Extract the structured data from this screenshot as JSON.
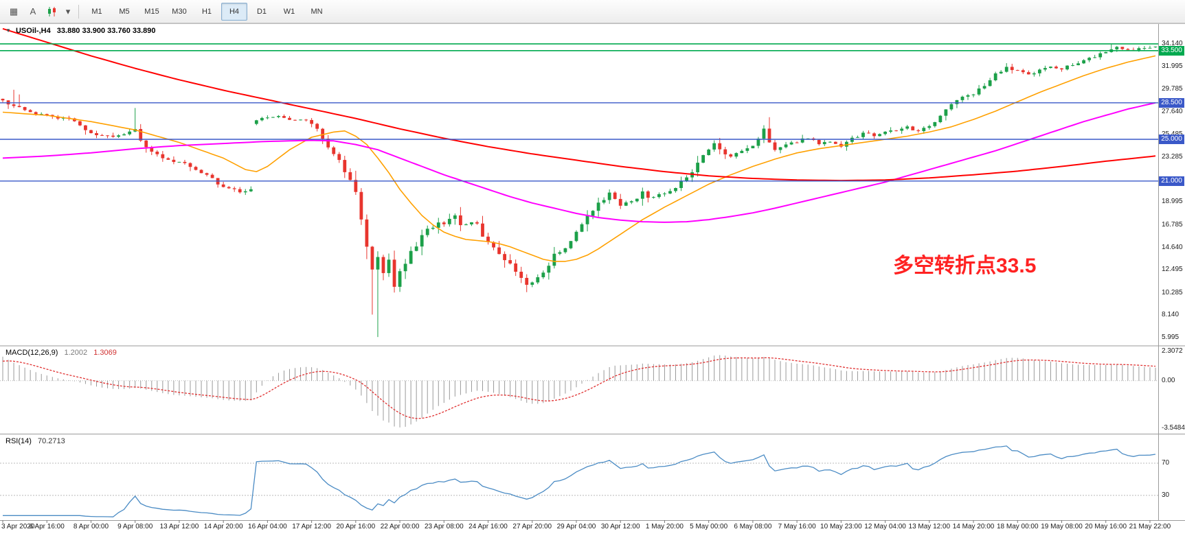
{
  "toolbar": {
    "timeframes": [
      "M1",
      "M5",
      "M15",
      "M30",
      "H1",
      "H4",
      "D1",
      "W1",
      "MN"
    ],
    "active_timeframe": "H4",
    "annotation_button_label": "A"
  },
  "icons": {
    "grid": "▦",
    "caret_down": "▾",
    "caret_small": "▼"
  },
  "main_chart": {
    "title_symbol": "USOil-,H4",
    "title_ohlc": "33.880 33.900 33.760 33.890",
    "annotation": "多空转折点33.5",
    "y_axis_labels": [
      "34.140",
      "31.995",
      "29.785",
      "27.640",
      "25.485",
      "23.285",
      "21.140",
      "18.995",
      "16.785",
      "14.640",
      "12.495",
      "10.285",
      "8.140",
      "5.995"
    ]
  },
  "hlines": [
    {
      "price": 34.15,
      "color": "#00A94F",
      "width": 1.6,
      "badge": null
    },
    {
      "price": 33.5,
      "color": "#00A94F",
      "width": 1.6,
      "badge": "33.500"
    },
    {
      "price": 28.5,
      "color": "#3A58C8",
      "width": 1.4,
      "badge": "28.500"
    },
    {
      "price": 25.0,
      "color": "#3A58C8",
      "width": 1.4,
      "badge": "25.000"
    },
    {
      "price": 21.0,
      "color": "#3A58C8",
      "width": 1.4,
      "badge": "21.000"
    }
  ],
  "macd": {
    "title": "MACD(12,26,9)",
    "value_main": "1.2002",
    "value_signal": "1.3069",
    "axis_labels": [
      "2.3072",
      "0.00",
      "-3.5484"
    ],
    "axis_values": [
      2.3072,
      0,
      -3.5484
    ],
    "ylim": [
      -3.75,
      2.45
    ],
    "signal_init": 1.4
  },
  "rsi": {
    "title": "RSI(14)",
    "value": "70.2713",
    "levels": [
      70,
      30
    ],
    "ylim": [
      0,
      105
    ]
  },
  "time_axis": {
    "bar_step": 8,
    "labels": [
      "3 Apr 2020",
      "6 Apr 16:00",
      "8 Apr 00:00",
      "9 Apr 08:00",
      "13 Apr 12:00",
      "14 Apr 20:00",
      "16 Apr 04:00",
      "17 Apr 12:00",
      "20 Apr 16:00",
      "22 Apr 00:00",
      "23 Apr 08:00",
      "24 Apr 16:00",
      "27 Apr 20:00",
      "29 Apr 04:00",
      "30 Apr 12:00",
      "1 May 20:00",
      "5 May 00:00",
      "6 May 08:00",
      "7 May 16:00",
      "10 May 23:00",
      "12 May 04:00",
      "13 May 12:00",
      "14 May 20:00",
      "18 May 00:00",
      "19 May 08:00",
      "20 May 16:00",
      "21 May 22:00"
    ]
  },
  "colors": {
    "bull": "#1CA049",
    "bear": "#E8352E",
    "ma_red": "#FF0000",
    "ma_orange": "#FFA000",
    "ma_magenta": "#FF00FF",
    "hline_blue": "#3A58C8",
    "hline_green": "#00A94F",
    "macd_hist": "#999999",
    "macd_signal": "#E03030",
    "rsi_line": "#4A8BC4",
    "annotation": "#FF2222"
  },
  "chart_data": {
    "type": "candlestick",
    "symbol": "USOil",
    "timeframe": "H4",
    "last_candle": {
      "o": 33.88,
      "h": 33.9,
      "l": 33.76,
      "c": 33.89
    },
    "bars": 210,
    "seed": 12345,
    "noise_amp": 0.14,
    "noise_zones": [
      {
        "from": 58,
        "to": 100,
        "mult": 2.4
      },
      {
        "from": 101,
        "to": 132,
        "mult": 1.5
      }
    ],
    "close_anchors": [
      [
        0,
        28.6
      ],
      [
        2,
        28.2
      ],
      [
        4,
        27.8
      ],
      [
        6,
        27.5
      ],
      [
        8,
        27.2
      ],
      [
        10,
        27.0
      ],
      [
        12,
        26.9
      ],
      [
        14,
        26.3
      ],
      [
        16,
        25.6
      ],
      [
        18,
        25.3
      ],
      [
        20,
        25.2
      ],
      [
        22,
        25.4
      ],
      [
        24,
        26.0
      ],
      [
        25,
        25.0
      ],
      [
        26,
        24.3
      ],
      [
        28,
        23.5
      ],
      [
        30,
        23.1
      ],
      [
        32,
        22.8
      ],
      [
        34,
        22.4
      ],
      [
        36,
        21.9
      ],
      [
        38,
        21.2
      ],
      [
        40,
        20.4
      ],
      [
        42,
        20.1
      ],
      [
        44,
        20.0
      ],
      [
        45,
        20.1
      ],
      [
        46,
        26.8
      ],
      [
        48,
        27.1
      ],
      [
        50,
        27.3
      ],
      [
        52,
        26.8
      ],
      [
        54,
        27.0
      ],
      [
        56,
        26.5
      ],
      [
        58,
        25.3
      ],
      [
        60,
        23.8
      ],
      [
        62,
        21.9
      ],
      [
        64,
        20.0
      ],
      [
        65,
        17.6
      ],
      [
        66,
        14.8
      ],
      [
        67,
        12.2
      ],
      [
        68,
        13.4
      ],
      [
        69,
        12.0
      ],
      [
        70,
        13.6
      ],
      [
        71,
        11.2
      ],
      [
        72,
        12.3
      ],
      [
        74,
        14.3
      ],
      [
        76,
        15.6
      ],
      [
        78,
        16.7
      ],
      [
        80,
        17.0
      ],
      [
        82,
        17.4
      ],
      [
        84,
        16.6
      ],
      [
        86,
        16.9
      ],
      [
        88,
        15.1
      ],
      [
        90,
        13.9
      ],
      [
        92,
        12.8
      ],
      [
        94,
        11.4
      ],
      [
        95,
        10.8
      ],
      [
        96,
        11.3
      ],
      [
        98,
        12.4
      ],
      [
        100,
        13.7
      ],
      [
        102,
        14.7
      ],
      [
        104,
        16.2
      ],
      [
        106,
        17.7
      ],
      [
        108,
        18.8
      ],
      [
        110,
        19.7
      ],
      [
        112,
        18.6
      ],
      [
        114,
        19.2
      ],
      [
        116,
        19.8
      ],
      [
        118,
        19.4
      ],
      [
        120,
        19.7
      ],
      [
        122,
        20.5
      ],
      [
        124,
        21.4
      ],
      [
        126,
        22.7
      ],
      [
        128,
        24.2
      ],
      [
        129,
        24.7
      ],
      [
        130,
        24.0
      ],
      [
        132,
        23.3
      ],
      [
        134,
        23.8
      ],
      [
        136,
        24.3
      ],
      [
        138,
        25.9
      ],
      [
        139,
        24.6
      ],
      [
        140,
        24.0
      ],
      [
        142,
        24.4
      ],
      [
        144,
        24.8
      ],
      [
        146,
        25.1
      ],
      [
        148,
        24.6
      ],
      [
        150,
        24.9
      ],
      [
        152,
        24.4
      ],
      [
        154,
        25.1
      ],
      [
        156,
        25.6
      ],
      [
        158,
        25.3
      ],
      [
        160,
        25.7
      ],
      [
        162,
        25.9
      ],
      [
        164,
        26.1
      ],
      [
        166,
        25.8
      ],
      [
        168,
        26.3
      ],
      [
        170,
        27.2
      ],
      [
        172,
        28.3
      ],
      [
        174,
        29.0
      ],
      [
        176,
        29.4
      ],
      [
        178,
        30.2
      ],
      [
        180,
        31.3
      ],
      [
        182,
        31.9
      ],
      [
        184,
        31.5
      ],
      [
        186,
        31.1
      ],
      [
        188,
        31.6
      ],
      [
        190,
        32.0
      ],
      [
        192,
        31.8
      ],
      [
        194,
        32.2
      ],
      [
        196,
        32.6
      ],
      [
        198,
        33.0
      ],
      [
        200,
        33.4
      ],
      [
        202,
        33.8
      ],
      [
        204,
        33.5
      ],
      [
        206,
        33.8
      ],
      [
        208,
        33.89
      ],
      [
        209,
        33.89
      ]
    ],
    "spikes": [
      {
        "bar": 2,
        "high": 29.75
      },
      {
        "bar": 3,
        "high": 29.3
      },
      {
        "bar": 24,
        "high": 28.0
      },
      {
        "bar": 67,
        "low": 8.2
      },
      {
        "bar": 68,
        "low": 6.05
      },
      {
        "bar": 71,
        "low": 10.6
      },
      {
        "bar": 95,
        "low": 10.35
      },
      {
        "bar": 129,
        "high": 24.9
      },
      {
        "bar": 138,
        "high": 26.35
      },
      {
        "bar": 182,
        "high": 32.3
      },
      {
        "bar": 201,
        "high": 34.1
      }
    ],
    "ma_red": [
      [
        0,
        35.6
      ],
      [
        8,
        34.3
      ],
      [
        16,
        33.0
      ],
      [
        24,
        31.8
      ],
      [
        32,
        30.7
      ],
      [
        40,
        29.7
      ],
      [
        48,
        28.8
      ],
      [
        56,
        27.9
      ],
      [
        64,
        27.0
      ],
      [
        72,
        26.0
      ],
      [
        80,
        25.1
      ],
      [
        88,
        24.3
      ],
      [
        96,
        23.6
      ],
      [
        104,
        23.0
      ],
      [
        112,
        22.4
      ],
      [
        120,
        21.9
      ],
      [
        128,
        21.5
      ],
      [
        136,
        21.25
      ],
      [
        144,
        21.1
      ],
      [
        152,
        21.05
      ],
      [
        160,
        21.1
      ],
      [
        168,
        21.3
      ],
      [
        176,
        21.6
      ],
      [
        184,
        21.95
      ],
      [
        192,
        22.4
      ],
      [
        200,
        22.9
      ],
      [
        209,
        23.4
      ]
    ],
    "ma_magenta": [
      [
        0,
        23.2
      ],
      [
        8,
        23.4
      ],
      [
        16,
        23.7
      ],
      [
        24,
        24.1
      ],
      [
        32,
        24.4
      ],
      [
        40,
        24.6
      ],
      [
        48,
        24.8
      ],
      [
        56,
        24.9
      ],
      [
        60,
        24.85
      ],
      [
        64,
        24.5
      ],
      [
        68,
        24.0
      ],
      [
        72,
        23.2
      ],
      [
        76,
        22.4
      ],
      [
        80,
        21.6
      ],
      [
        84,
        20.9
      ],
      [
        88,
        20.2
      ],
      [
        92,
        19.5
      ],
      [
        96,
        18.9
      ],
      [
        100,
        18.4
      ],
      [
        104,
        17.9
      ],
      [
        108,
        17.5
      ],
      [
        112,
        17.25
      ],
      [
        116,
        17.1
      ],
      [
        120,
        17.05
      ],
      [
        124,
        17.1
      ],
      [
        128,
        17.3
      ],
      [
        132,
        17.6
      ],
      [
        136,
        17.95
      ],
      [
        140,
        18.4
      ],
      [
        144,
        18.9
      ],
      [
        148,
        19.4
      ],
      [
        152,
        19.9
      ],
      [
        156,
        20.4
      ],
      [
        160,
        20.9
      ],
      [
        164,
        21.5
      ],
      [
        168,
        22.1
      ],
      [
        172,
        22.7
      ],
      [
        176,
        23.3
      ],
      [
        180,
        23.9
      ],
      [
        184,
        24.6
      ],
      [
        188,
        25.3
      ],
      [
        192,
        26.0
      ],
      [
        196,
        26.7
      ],
      [
        200,
        27.3
      ],
      [
        204,
        27.9
      ],
      [
        209,
        28.5
      ]
    ],
    "ma_orange": [
      [
        0,
        27.6
      ],
      [
        8,
        27.3
      ],
      [
        16,
        26.7
      ],
      [
        24,
        25.9
      ],
      [
        32,
        24.7
      ],
      [
        40,
        23.2
      ],
      [
        44,
        22.1
      ],
      [
        46,
        21.9
      ],
      [
        48,
        22.4
      ],
      [
        52,
        24.0
      ],
      [
        56,
        25.2
      ],
      [
        60,
        25.7
      ],
      [
        62,
        25.8
      ],
      [
        64,
        25.3
      ],
      [
        66,
        24.5
      ],
      [
        68,
        23.2
      ],
      [
        70,
        21.8
      ],
      [
        72,
        20.2
      ],
      [
        74,
        18.9
      ],
      [
        76,
        17.7
      ],
      [
        78,
        16.8
      ],
      [
        80,
        16.1
      ],
      [
        82,
        15.7
      ],
      [
        84,
        15.4
      ],
      [
        86,
        15.3
      ],
      [
        88,
        15.2
      ],
      [
        90,
        15.0
      ],
      [
        92,
        14.7
      ],
      [
        94,
        14.3
      ],
      [
        96,
        13.9
      ],
      [
        98,
        13.5
      ],
      [
        100,
        13.3
      ],
      [
        102,
        13.3
      ],
      [
        104,
        13.5
      ],
      [
        106,
        13.9
      ],
      [
        108,
        14.5
      ],
      [
        110,
        15.2
      ],
      [
        112,
        15.9
      ],
      [
        114,
        16.6
      ],
      [
        116,
        17.3
      ],
      [
        118,
        17.9
      ],
      [
        120,
        18.5
      ],
      [
        124,
        19.6
      ],
      [
        128,
        20.7
      ],
      [
        132,
        21.6
      ],
      [
        136,
        22.4
      ],
      [
        140,
        23.1
      ],
      [
        144,
        23.7
      ],
      [
        148,
        24.1
      ],
      [
        152,
        24.4
      ],
      [
        156,
        24.7
      ],
      [
        160,
        25.0
      ],
      [
        164,
        25.3
      ],
      [
        168,
        25.7
      ],
      [
        172,
        26.2
      ],
      [
        176,
        26.9
      ],
      [
        180,
        27.7
      ],
      [
        184,
        28.6
      ],
      [
        188,
        29.5
      ],
      [
        192,
        30.3
      ],
      [
        196,
        31.1
      ],
      [
        200,
        31.8
      ],
      [
        204,
        32.4
      ],
      [
        209,
        33.0
      ]
    ]
  }
}
